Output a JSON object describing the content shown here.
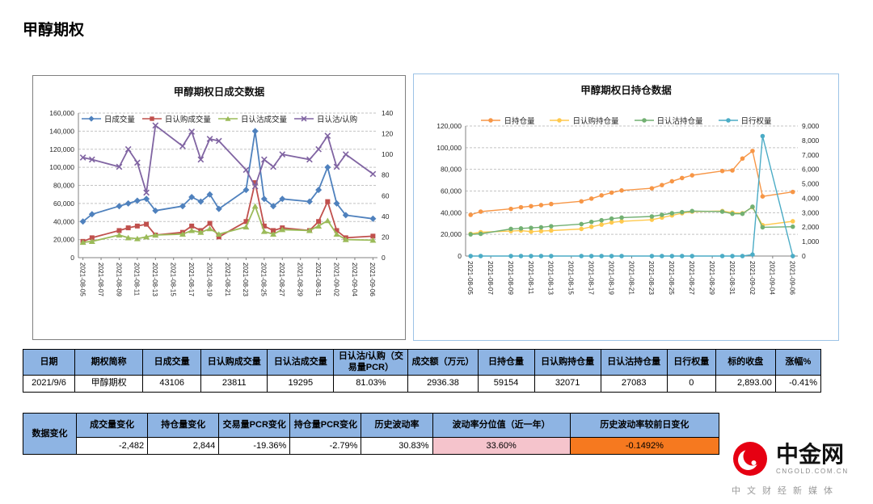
{
  "page": {
    "title": "甲醇期权"
  },
  "colors": {
    "table_header_blue": "#8EB4E3",
    "highlight_pink": "#F5C4CC",
    "highlight_orange": "#F6791F",
    "brand_red": "#E60012",
    "panel_border_left": "#7F7F7F",
    "panel_border_right": "#9DC3E6"
  },
  "chart_data": [
    {
      "type": "line",
      "title": "甲醇期权日成交数据",
      "legend_position": "top",
      "grid": true,
      "x_dates": [
        "2021-08-05",
        "2021-08-06",
        "2021-08-09",
        "2021-08-10",
        "2021-08-11",
        "2021-08-12",
        "2021-08-13",
        "2021-08-16",
        "2021-08-17",
        "2021-08-18",
        "2021-08-19",
        "2021-08-20",
        "2021-08-23",
        "2021-08-24",
        "2021-08-25",
        "2021-08-26",
        "2021-08-27",
        "2021-08-30",
        "2021-08-31",
        "2021-09-01",
        "2021-09-02",
        "2021-09-03",
        "2021-09-06"
      ],
      "x_offsets": [
        0,
        1,
        4,
        5,
        6,
        7,
        8,
        11,
        12,
        13,
        14,
        15,
        18,
        19,
        20,
        21,
        22,
        25,
        26,
        27,
        28,
        29,
        32
      ],
      "x_span": 32,
      "x_tick_offsets": [
        0,
        2,
        4,
        6,
        8,
        10,
        12,
        14,
        16,
        18,
        20,
        22,
        24,
        26,
        28,
        30,
        32
      ],
      "x_tick_labels": [
        "2021-08-05",
        "2021-08-07",
        "2021-08-09",
        "2021-08-11",
        "2021-08-13",
        "2021-08-15",
        "2021-08-17",
        "2021-08-19",
        "2021-08-21",
        "2021-08-23",
        "2021-08-25",
        "2021-08-27",
        "2021-08-29",
        "2021-08-31",
        "2021-09-02",
        "2021-09-04",
        "2021-09-06"
      ],
      "y_left": {
        "min": 0,
        "max": 160000,
        "tick_labels": [
          "0",
          "20,000",
          "40,000",
          "60,000",
          "80,000",
          "100,000",
          "120,000",
          "140,000",
          "160,000"
        ]
      },
      "y_right": {
        "min": 0,
        "max": 140,
        "tick_labels": [
          "0",
          "20",
          "40",
          "60",
          "80",
          "100",
          "120",
          "140"
        ]
      },
      "series": [
        {
          "name": "日成交量",
          "color": "#4F81BD",
          "marker": "diamond",
          "axis": "left",
          "values": [
            40000,
            48000,
            57000,
            60000,
            63000,
            65000,
            52000,
            57000,
            67000,
            62000,
            70000,
            54000,
            75000,
            140000,
            65000,
            57000,
            65000,
            62000,
            75000,
            100000,
            60000,
            47000,
            43106
          ]
        },
        {
          "name": "日认购成交量",
          "color": "#C0504D",
          "marker": "square",
          "axis": "left",
          "values": [
            18000,
            22000,
            30000,
            33000,
            35000,
            37000,
            25000,
            28000,
            35000,
            30000,
            38000,
            23000,
            40000,
            83000,
            35000,
            30000,
            33000,
            30000,
            40000,
            62000,
            30000,
            22000,
            23811
          ]
        },
        {
          "name": "日认沽成交量",
          "color": "#9BBB59",
          "marker": "triangle",
          "axis": "left",
          "values": [
            17000,
            18000,
            25000,
            22000,
            21000,
            23000,
            25000,
            26000,
            30000,
            28000,
            32000,
            26000,
            34000,
            57000,
            29000,
            26000,
            31000,
            30000,
            35000,
            41000,
            26000,
            20000,
            19295
          ]
        },
        {
          "name": "日认沽/认购",
          "color": "#8064A2",
          "marker": "x",
          "axis": "right",
          "values": [
            97,
            95,
            88,
            105,
            92,
            63,
            128,
            108,
            122,
            95,
            115,
            113,
            85,
            69,
            95,
            88,
            100,
            95,
            105,
            118,
            88,
            100,
            81
          ]
        }
      ]
    },
    {
      "type": "line",
      "title": "甲醇期权日持仓数据",
      "legend_position": "top",
      "grid": true,
      "x_dates": [
        "2021-08-05",
        "2021-08-06",
        "2021-08-09",
        "2021-08-10",
        "2021-08-11",
        "2021-08-12",
        "2021-08-13",
        "2021-08-16",
        "2021-08-17",
        "2021-08-18",
        "2021-08-19",
        "2021-08-20",
        "2021-08-23",
        "2021-08-24",
        "2021-08-25",
        "2021-08-26",
        "2021-08-27",
        "2021-08-30",
        "2021-08-31",
        "2021-09-01",
        "2021-09-02",
        "2021-09-03",
        "2021-09-06"
      ],
      "x_offsets": [
        0,
        1,
        4,
        5,
        6,
        7,
        8,
        11,
        12,
        13,
        14,
        15,
        18,
        19,
        20,
        21,
        22,
        25,
        26,
        27,
        28,
        29,
        32
      ],
      "x_span": 32,
      "x_tick_offsets": [
        0,
        2,
        4,
        6,
        8,
        10,
        12,
        14,
        16,
        18,
        20,
        22,
        24,
        26,
        28,
        30,
        32
      ],
      "x_tick_labels": [
        "2021-08-05",
        "2021-08-07",
        "2021-08-09",
        "2021-08-11",
        "2021-08-13",
        "2021-08-15",
        "2021-08-17",
        "2021-08-19",
        "2021-08-21",
        "2021-08-23",
        "2021-08-25",
        "2021-08-27",
        "2021-08-29",
        "2021-08-31",
        "2021-09-02",
        "2021-09-04",
        "2021-09-06"
      ],
      "y_left": {
        "min": 0,
        "max": 120000,
        "tick_labels": [
          "0",
          "20,000",
          "40,000",
          "60,000",
          "80,000",
          "100,000",
          "120,000"
        ]
      },
      "y_right": {
        "min": 0,
        "max": 9000,
        "tick_labels": [
          "0",
          "1,000",
          "2,000",
          "3,000",
          "4,000",
          "5,000",
          "6,000",
          "7,000",
          "8,000",
          "9,000"
        ]
      },
      "series": [
        {
          "name": "日持仓量",
          "color": "#F79646",
          "marker": "circle",
          "axis": "left",
          "values": [
            38000,
            41000,
            43500,
            45000,
            46000,
            47000,
            48000,
            50500,
            53000,
            56000,
            58500,
            60500,
            62500,
            65500,
            69000,
            72000,
            74500,
            78500,
            79000,
            90000,
            97000,
            55000,
            59154
          ]
        },
        {
          "name": "日认购持仓量",
          "color": "#FFC94D",
          "marker": "circle",
          "axis": "left",
          "values": [
            20500,
            22000,
            23000,
            23500,
            22500,
            23000,
            23500,
            25000,
            27000,
            29000,
            31000,
            32000,
            33500,
            35500,
            37500,
            39500,
            41000,
            41500,
            40000,
            39500,
            45000,
            28500,
            32071
          ]
        },
        {
          "name": "日认沽持仓量",
          "color": "#72B072",
          "marker": "circle",
          "axis": "left",
          "values": [
            20000,
            20500,
            25000,
            25500,
            26000,
            26500,
            27500,
            29500,
            31500,
            33000,
            34500,
            35500,
            36500,
            38000,
            39500,
            40500,
            41500,
            41000,
            39000,
            39000,
            45500,
            26500,
            27083
          ]
        },
        {
          "name": "日行权量",
          "color": "#4BACC6",
          "marker": "circle",
          "axis": "right",
          "values": [
            0,
            0,
            0,
            0,
            0,
            0,
            0,
            0,
            0,
            0,
            0,
            0,
            0,
            0,
            0,
            0,
            0,
            0,
            0,
            0,
            100,
            8300,
            0
          ]
        }
      ]
    }
  ],
  "table_summary": {
    "headers": [
      "日期",
      "期权简称",
      "日成交量",
      "日认购成交量",
      "日认沽成交量",
      "日认沽/认购（交易量PCR）",
      "成交额（万元）",
      "日持仓量",
      "日认购持仓量",
      "日认沽持仓量",
      "日行权量",
      "标的收盘",
      "涨幅%"
    ],
    "row": [
      "2021/9/6",
      "甲醇期权",
      "43106",
      "23811",
      "19295",
      "81.03%",
      "2936.38",
      "59154",
      "32071",
      "27083",
      "0",
      "2,893.00",
      "-0.41%"
    ]
  },
  "table_changes": {
    "row_label": "数据变化",
    "headers": [
      "成交量变化",
      "持仓量变化",
      "交易量PCR变化",
      "持仓量PCR变化",
      "历史波动率",
      "波动率分位值（近一年）",
      "历史波动率较前日变化"
    ],
    "values": [
      "-2,482",
      "2,844",
      "-19.36%",
      "-2.79%",
      "30.83%",
      "33.60%",
      "-0.1492%"
    ],
    "highlights": {
      "5": "#F5C4CC",
      "6": "#F6791F"
    }
  },
  "logo": {
    "brand": "中金网",
    "site": "CNGOLD.COM.CN",
    "tagline": "中文财经新媒体"
  }
}
